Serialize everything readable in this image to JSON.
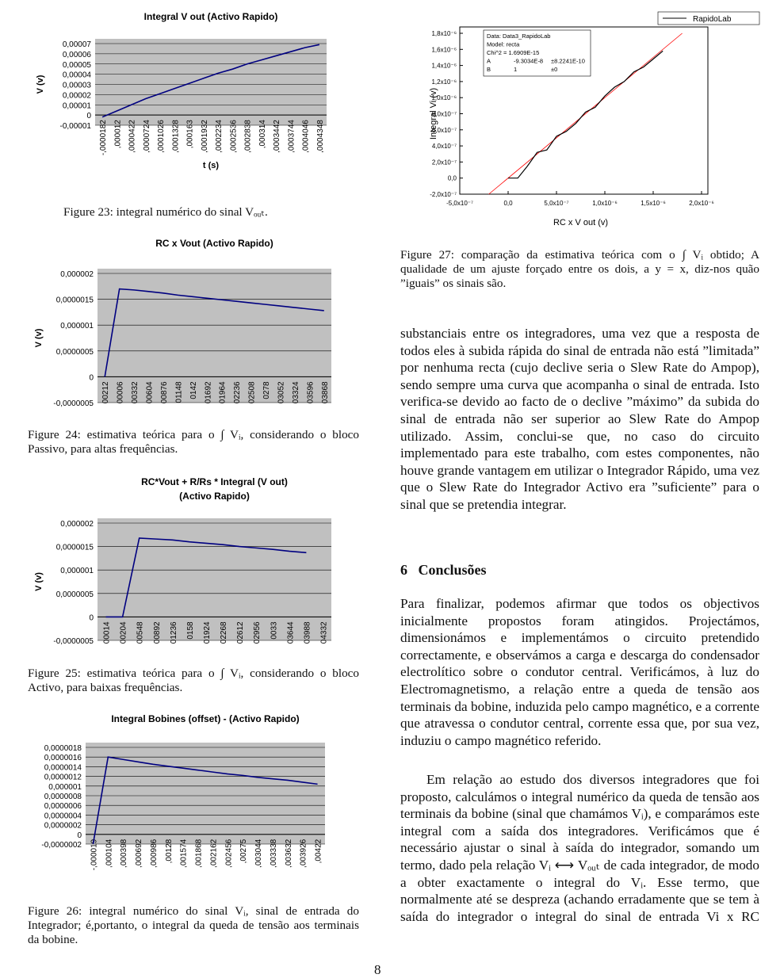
{
  "chart_data": [
    {
      "type": "line",
      "title": [
        "Integral V out (Activo Rapido)"
      ],
      "y_label": "V (v)",
      "x_label": "t (s)",
      "categories": [
        "-,0000182",
        ",000012",
        ",0000422",
        ",0000724",
        ",0001026",
        ",0001328",
        ",000163",
        ",0001932",
        ",0002234",
        ",0002536",
        ",0002838",
        ",000314",
        ",0003442",
        ",0003744",
        ",0004046",
        ",0004348"
      ],
      "series": [
        {
          "color": "#000080",
          "values": [
            -2e-06,
            4e-06,
            1e-05,
            1.6e-05,
            2.1e-05,
            2.6e-05,
            3.1e-05,
            3.6e-05,
            4.1e-05,
            4.5e-05,
            5e-05,
            5.4e-05,
            5.8e-05,
            6.2e-05,
            6.6e-05,
            6.9e-05
          ]
        }
      ],
      "ylim": [
        -1e-05,
        7e-05
      ],
      "yticks": [
        {
          "value": -1e-05,
          "label": "-0,00001"
        },
        0,
        {
          "value": 1e-05,
          "label": "0,00001"
        },
        {
          "value": 2e-05,
          "label": "0,00002"
        },
        {
          "value": 3e-05,
          "label": "0,00003"
        },
        {
          "value": 4e-05,
          "label": "0,00004"
        },
        {
          "value": 5e-05,
          "label": "0,00005"
        },
        {
          "value": 6e-05,
          "label": "0,00006"
        },
        {
          "value": 7e-05,
          "label": "0,00007"
        }
      ]
    },
    {
      "type": "line",
      "title": [
        "RC x Vout (Activo Rapido)"
      ],
      "y_label": "V (v)",
      "categories": [
        "00212",
        "00006",
        "00332",
        "00604",
        "00876",
        "01148",
        "0142",
        "01692",
        "01964",
        "02236",
        "02508",
        "0278",
        "03052",
        "03324",
        "03596",
        "03868"
      ],
      "series": [
        {
          "color": "#000080",
          "values": [
            0,
            1.7e-06,
            1.68e-06,
            1.65e-06,
            1.62e-06,
            1.58e-06,
            1.55e-06,
            1.52e-06,
            1.49e-06,
            1.46e-06,
            1.43e-06,
            1.4e-06,
            1.37e-06,
            1.34e-06,
            1.31e-06,
            1.28e-06
          ]
        }
      ],
      "ylim": [
        -5e-07,
        2e-06
      ],
      "yticks": [
        {
          "value": -5e-07,
          "label": "-0,0000005"
        },
        0,
        {
          "value": 5e-07,
          "label": "0,0000005"
        },
        {
          "value": 1e-06,
          "label": "0,000001"
        },
        {
          "value": 1.5e-06,
          "label": "0,0000015"
        },
        {
          "value": 2e-06,
          "label": "0,000002"
        }
      ]
    },
    {
      "type": "line",
      "title": [
        "RC*Vout + R/Rs * Integral (V out)",
        "(Activo Rapido)"
      ],
      "y_label": "V (v)",
      "categories": [
        "00014",
        "00204",
        "00548",
        "00892",
        "01236",
        "0158",
        "01924",
        "02268",
        "02612",
        "02956",
        "0033",
        "03644",
        "03988",
        "04332"
      ],
      "series": [
        {
          "color": "#000080",
          "values": [
            0,
            0,
            1.68e-06,
            1.66e-06,
            1.64e-06,
            1.6e-06,
            1.57e-06,
            1.54e-06,
            1.5e-06,
            1.47e-06,
            1.44e-06,
            1.4e-06,
            1.37e-06,
            null
          ]
        }
      ],
      "ylim": [
        -5e-07,
        2e-06
      ],
      "yticks": [
        {
          "value": -5e-07,
          "label": "-0,0000005"
        },
        0,
        {
          "value": 5e-07,
          "label": "0,0000005"
        },
        {
          "value": 1e-06,
          "label": "0,000001"
        },
        {
          "value": 1.5e-06,
          "label": "0,0000015"
        },
        {
          "value": 2e-06,
          "label": "0,000002"
        }
      ]
    },
    {
      "type": "line",
      "title": [
        "Integral Bobines (offset) - (Activo Rapido)"
      ],
      "categories": [
        "-,000019",
        ",000104",
        ",000398",
        ",000692",
        ",000986",
        ",00128",
        ",001574",
        ",001868",
        ",002162",
        ",002456",
        ",00275",
        ",003044",
        ",003338",
        ",003632",
        ",003926",
        ",00422"
      ],
      "series": [
        {
          "color": "#000080",
          "values": [
            -2e-07,
            1.6e-06,
            1.55e-06,
            1.5e-06,
            1.45e-06,
            1.41e-06,
            1.37e-06,
            1.33e-06,
            1.29e-06,
            1.25e-06,
            1.22e-06,
            1.18e-06,
            1.15e-06,
            1.12e-06,
            1.08e-06,
            1.04e-06
          ]
        }
      ],
      "ylim": [
        -2e-07,
        1.8e-06
      ],
      "yticks": [
        {
          "value": -2e-07,
          "label": "-0,0000002"
        },
        0,
        {
          "value": 2e-07,
          "label": "0,0000002"
        },
        {
          "value": 4e-07,
          "label": "0,0000004"
        },
        {
          "value": 6e-07,
          "label": "0,0000006"
        },
        {
          "value": 8e-07,
          "label": "0,0000008"
        },
        {
          "value": 1e-06,
          "label": "0,000001"
        },
        {
          "value": 1.2e-06,
          "label": "0,0000012"
        },
        {
          "value": 1.4e-06,
          "label": "0,0000014"
        },
        {
          "value": 1.6e-06,
          "label": "0,0000016"
        },
        {
          "value": 1.8e-06,
          "label": "0,0000018"
        }
      ]
    },
    {
      "type": "xyline",
      "y_label": "Integral Vi (v)",
      "x_label": "RC x V out (v)",
      "fit_color": "#ff0000",
      "fit_box": [
        [
          "Data: Data3_RapidoLab"
        ],
        [
          "Model: recta"
        ],
        [
          "Chi^2 = 1.6909E-15"
        ],
        [
          "A",
          "-9.3034E-8",
          "±8.2241E-10"
        ],
        [
          "B",
          "1",
          "±0"
        ]
      ],
      "x": [
        0,
        5e-08,
        1e-07,
        2e-07,
        3e-07,
        4e-07,
        5e-07,
        6e-07,
        7e-07,
        8e-07,
        9e-07,
        1e-06,
        1.1e-06,
        1.2e-06,
        1.3e-06,
        1.4e-06,
        1.5e-06,
        1.6e-06
      ],
      "series": [
        {
          "name": "RapidoLab",
          "color": "#000000",
          "values": [
            0,
            0,
            0,
            1.5e-07,
            3.2e-07,
            3.5e-07,
            5.2e-07,
            5.8e-07,
            6.8e-07,
            8.2e-07,
            8.8e-07,
            1.02e-06,
            1.13e-06,
            1.2e-06,
            1.32e-06,
            1.38e-06,
            1.48e-06,
            1.58e-06
          ]
        }
      ],
      "xlim": [
        -5e-07,
        2e-06
      ],
      "ylim": [
        -2e-07,
        1.8e-06
      ],
      "xticks": [
        {
          "value": -5e-07,
          "label": "-5,0x10⁻⁷"
        },
        {
          "value": 0,
          "label": "0,0"
        },
        {
          "value": 5e-07,
          "label": "5,0x10⁻⁷"
        },
        {
          "value": 1e-06,
          "label": "1,0x10⁻⁶"
        },
        {
          "value": 1.5e-06,
          "label": "1,5x10⁻⁶"
        },
        {
          "value": 2e-06,
          "label": "2,0x10⁻⁶"
        }
      ],
      "yticks": [
        {
          "value": -2e-07,
          "label": "-2,0x10⁻⁷"
        },
        {
          "value": 0,
          "label": "0,0"
        },
        {
          "value": 2e-07,
          "label": "2,0x10⁻⁷"
        },
        {
          "value": 4e-07,
          "label": "4,0x10⁻⁷"
        },
        {
          "value": 6e-07,
          "label": "6,0x10⁻⁷"
        },
        {
          "value": 8e-07,
          "label": "8,0x10⁻⁷"
        },
        {
          "value": 1e-06,
          "label": "1,0x10⁻⁶"
        },
        {
          "value": 1.2e-06,
          "label": "1,2x10⁻⁶"
        },
        {
          "value": 1.4e-06,
          "label": "1,4x10⁻⁶"
        },
        {
          "value": 1.6e-06,
          "label": "1,6x10⁻⁶"
        },
        {
          "value": 1.8e-06,
          "label": "1,8x10⁻⁶"
        }
      ]
    }
  ],
  "captions": [
    "Figure 23: integral numérico do sinal Vₒᵤₜ.",
    "Figure 24: estimativa teórica para o ∫ Vᵢ, considerando o bloco Passivo, para altas frequências.",
    "Figure 25: estimativa teórica para o ∫ Vᵢ, considerando o bloco Activo, para baixas frequências.",
    "Figure 26: integral numérico do sinal Vᵢ, sinal de entrada do Integrador; é,portanto, o integral da queda de tensão aos terminais da bobine.",
    "Figure 27: comparação da estimativa teórica com o ∫ Vᵢ obtido; A qualidade de um ajuste forçado entre os dois, a y = x, diz-nos quão ”iguais” os sinais são."
  ],
  "body": {
    "paragraph_1": "substanciais entre os integradores, uma vez que a resposta de todos eles à subida rápida do sinal de entrada não está ”limitada” por nenhuma recta (cujo declive seria o Slew Rate do Ampop), sendo sempre uma curva que acompanha o sinal de entrada. Isto verifica-se devido ao facto de o declive ”máximo” da subida do sinal de entrada não ser superior ao Slew Rate do Ampop utilizado. Assim, conclui-se que, no caso do circuito implementado para este trabalho, com estes componentes, não houve grande vantagem em utilizar o Integrador Rápido, uma vez que o Slew Rate do Integrador Activo era ”suficiente” para o sinal que se pretendia integrar.",
    "section": {
      "number": "6",
      "title": "Conclusões"
    },
    "paragraph_2": "Para finalizar, podemos afirmar que todos os objectivos inicialmente propostos foram atingidos. Projectámos, dimensionámos e implementámos o circuito pretendido correctamente, e observámos a carga e descarga do condensador electrolítico sobre o condutor central. Verificámos, à luz do Electromagnetismo, a relação entre a queda de tensão aos terminais da bobine, induzida pelo campo magnético, e a corrente que atravessa o condutor central, corrente essa que, por sua vez, induziu o campo magnético referido.",
    "paragraph_3": "Em relação ao estudo dos diversos integradores que foi proposto, calculámos o integral numérico da queda de tensão aos terminais da bobine (sinal que chamámos Vᵢ), e comparámos este integral com a saída dos integradores. Verificámos que é necessário ajustar o sinal à saída do integrador, somando um termo, dado pela relação Vᵢ ⟷ Vₒᵤₜ de cada integrador, de modo a obter exactamente o integral do Vᵢ. Esse termo, que normalmente até se despreza (achando erradamente que se tem à saída do integrador o integral do sinal de entrada Vi x RC"
  },
  "page_number": "8"
}
